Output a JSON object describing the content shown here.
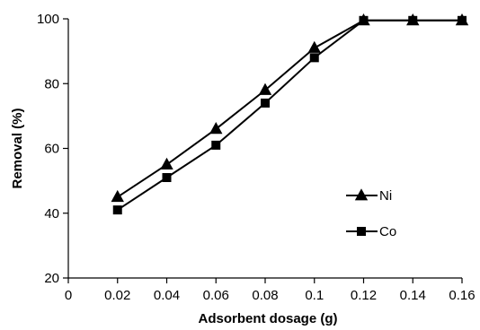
{
  "chart_data": {
    "type": "line",
    "title": "",
    "xlabel": "Adsorbent dosage (g)",
    "ylabel": "Removal (%)",
    "xlim": [
      0,
      0.16
    ],
    "ylim": [
      20,
      100
    ],
    "x_ticks": [
      "0",
      "0.02",
      "0.04",
      "0.06",
      "0.08",
      "0.1",
      "0.12",
      "0.14",
      "0.16"
    ],
    "y_ticks": [
      "20",
      "40",
      "60",
      "80",
      "100"
    ],
    "grid": false,
    "legend_position": "right",
    "series": [
      {
        "name": "Ni",
        "marker": "triangle",
        "color": "#000000",
        "x": [
          0.02,
          0.04,
          0.06,
          0.08,
          0.1,
          0.12,
          0.14,
          0.16
        ],
        "y": [
          45,
          55,
          66,
          78,
          91,
          99.5,
          99.5,
          99.5
        ]
      },
      {
        "name": "Co",
        "marker": "square",
        "color": "#000000",
        "x": [
          0.02,
          0.04,
          0.06,
          0.08,
          0.1,
          0.12,
          0.14,
          0.16
        ],
        "y": [
          41,
          51,
          61,
          74,
          88,
          99.5,
          99.5,
          99.5
        ]
      }
    ]
  }
}
